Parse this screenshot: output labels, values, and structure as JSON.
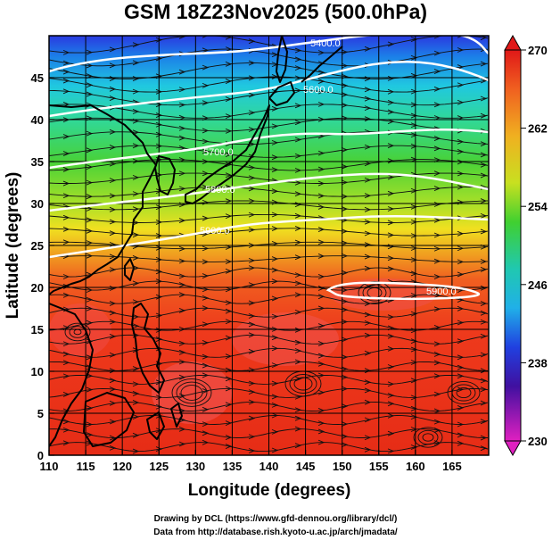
{
  "title": "GSM 18Z23Nov2025 (500.0hPa)",
  "x_axis": {
    "label": "Longitude (degrees)",
    "ticks": [
      "110",
      "115",
      "120",
      "125",
      "130",
      "135",
      "140",
      "145",
      "150",
      "155",
      "160",
      "165"
    ]
  },
  "y_axis": {
    "label": "Latitude  (degrees)",
    "ticks": [
      "0",
      "5",
      "10",
      "15",
      "20",
      "25",
      "30",
      "35",
      "40",
      "45"
    ]
  },
  "colorbar": {
    "ticks": [
      "270",
      "262",
      "254",
      "246",
      "238",
      "230"
    ],
    "min": 230,
    "max": 270
  },
  "contour_labels": [
    "5400.0",
    "5600.0",
    "5700.0",
    "5800.0",
    "5900.0",
    "5900.0"
  ],
  "credits": {
    "line1": "Drawing by DCL (https://www.gfd-dennou.org/library/dcl/)",
    "line2": "Data from http://database.rish.kyoto-u.ac.jp/arch/jmadata/"
  },
  "colors": {
    "cold": "#1b3bd6",
    "cyan": "#19c8d8",
    "green": "#3fd23a",
    "yellow": "#f0e020",
    "orange": "#f07020",
    "red": "#e82818"
  }
}
